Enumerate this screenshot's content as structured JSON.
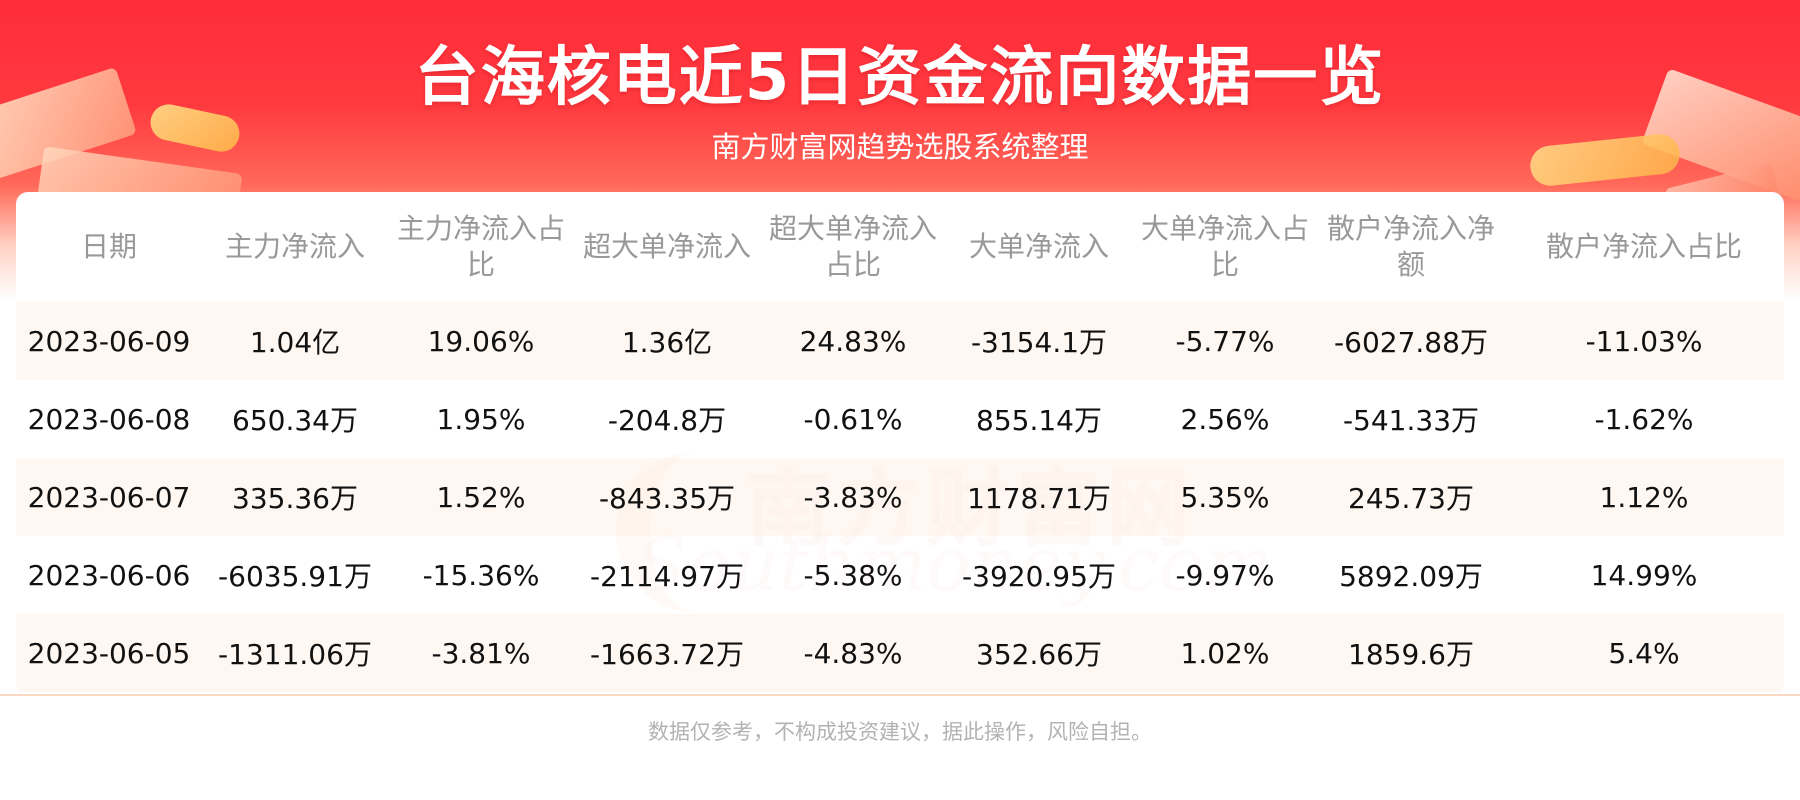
{
  "header": {
    "title": "台海核电近5日资金流向数据一览",
    "subtitle": "南方财富网趋势选股系统整理"
  },
  "watermark": {
    "cn": "南方财富网",
    "en": "Southmoney.com"
  },
  "table": {
    "columns": [
      "日期",
      "主力净流入",
      "主力净流入占比",
      "超大单净流入",
      "超大单净流入占比",
      "大单净流入",
      "大单净流入占比",
      "散户净流入净额",
      "散户净流入占比"
    ],
    "rows": [
      [
        "2023-06-09",
        "1.04亿",
        "19.06%",
        "1.36亿",
        "24.83%",
        "-3154.1万",
        "-5.77%",
        "-6027.88万",
        "-11.03%"
      ],
      [
        "2023-06-08",
        "650.34万",
        "1.95%",
        "-204.8万",
        "-0.61%",
        "855.14万",
        "2.56%",
        "-541.33万",
        "-1.62%"
      ],
      [
        "2023-06-07",
        "335.36万",
        "1.52%",
        "-843.35万",
        "-3.83%",
        "1178.71万",
        "5.35%",
        "245.73万",
        "1.12%"
      ],
      [
        "2023-06-06",
        "-6035.91万",
        "-15.36%",
        "-2114.97万",
        "-5.38%",
        "-3920.95万",
        "-9.97%",
        "5892.09万",
        "14.99%"
      ],
      [
        "2023-06-05",
        "-1311.06万",
        "-3.81%",
        "-1663.72万",
        "-4.83%",
        "352.66万",
        "1.02%",
        "1859.6万",
        "5.4%"
      ]
    ]
  },
  "footer": {
    "disclaimer": "数据仅参考，不构成投资建议，据此操作，风险自担。"
  },
  "colors": {
    "header_red": "#ff2b3a",
    "row_tint": "#fff4ec",
    "header_text": "#999999",
    "footer_text": "#b3b3b3"
  }
}
